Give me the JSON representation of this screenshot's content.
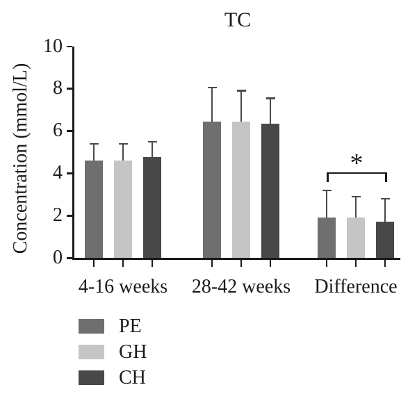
{
  "chart_data": {
    "type": "bar",
    "title": "TC",
    "ylabel": "Concentration (mmol/L)",
    "xlabel": "",
    "ylim": [
      0,
      10
    ],
    "yticks": [
      0,
      2,
      4,
      6,
      8,
      10
    ],
    "categories": [
      "4-16 weeks",
      "28-42 weeks",
      "Difference"
    ],
    "series": [
      {
        "name": "PE",
        "color": "#6f6f6f",
        "values": [
          4.6,
          6.45,
          1.9
        ],
        "errors_plus": [
          0.8,
          1.6,
          1.3
        ]
      },
      {
        "name": "GH",
        "color": "#c5c5c5",
        "values": [
          4.6,
          6.45,
          1.9
        ],
        "errors_plus": [
          0.8,
          1.45,
          1.0
        ]
      },
      {
        "name": "CH",
        "color": "#484848",
        "values": [
          4.75,
          6.35,
          1.7
        ],
        "errors_plus": [
          0.75,
          1.2,
          1.1
        ]
      }
    ],
    "annotations": [
      {
        "type": "significance-bracket",
        "label": "*",
        "category": "Difference",
        "from_series": "PE",
        "to_series": "CH",
        "y_value": 4.05
      }
    ],
    "grid": false,
    "legend_position": "bottom-left",
    "axis_color": "#1a1a1a",
    "error_bar_color": "#4a4a4a"
  }
}
